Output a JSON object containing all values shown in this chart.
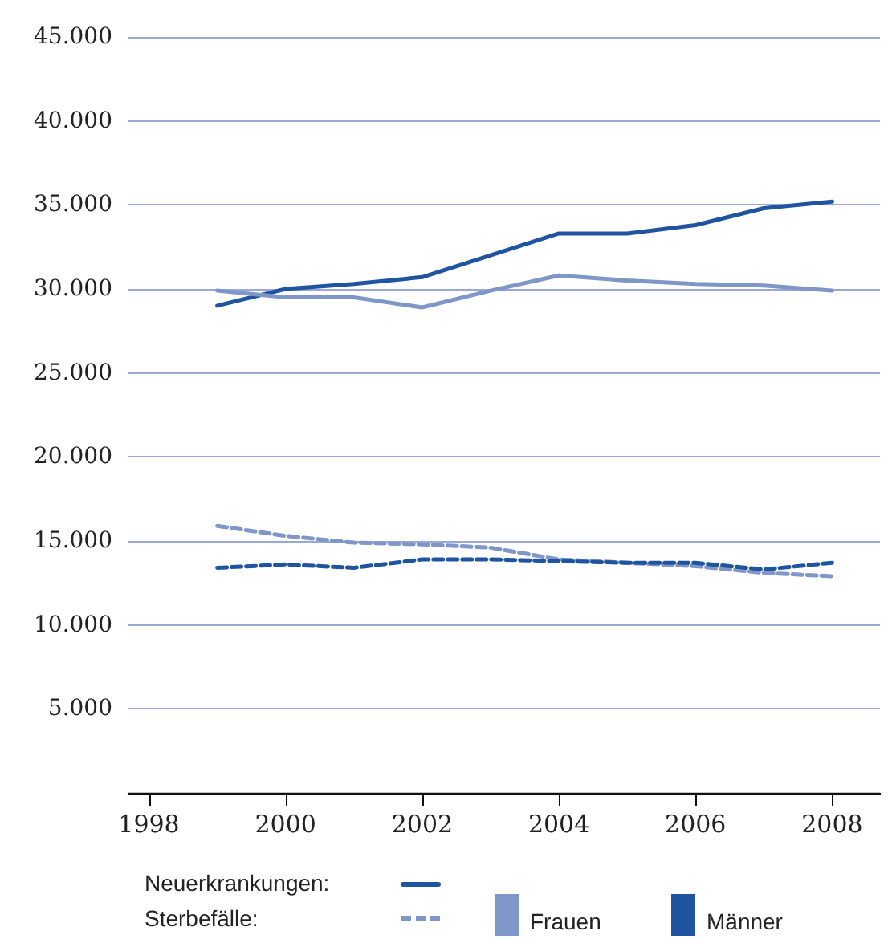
{
  "chart_data": {
    "type": "line",
    "x": [
      1999,
      2000,
      2001,
      2002,
      2003,
      2004,
      2005,
      2006,
      2007,
      2008
    ],
    "series": [
      {
        "color": "#1f55a0",
        "line_style": "solid",
        "values": [
          29000,
          30000,
          30300,
          30700,
          32000,
          33300,
          33300,
          33800,
          34800,
          35200
        ]
      },
      {
        "color": "#7f96c8",
        "line_style": "solid",
        "values": [
          29900,
          29500,
          29500,
          28900,
          29900,
          30800,
          30500,
          30300,
          30200,
          29900
        ]
      },
      {
        "color": "#7f96c8",
        "line_style": "dashed",
        "values": [
          15900,
          15300,
          14900,
          14800,
          14600,
          13900,
          13700,
          13500,
          13100,
          12900
        ]
      },
      {
        "color": "#1f55a0",
        "line_style": "dashed",
        "values": [
          13400,
          13600,
          13400,
          13900,
          13900,
          13800,
          13700,
          13700,
          13300,
          13700
        ]
      }
    ],
    "xlim": [
      1997.7,
      2008.7
    ],
    "xticks": [
      1998,
      2000,
      2002,
      2004,
      2006,
      2008
    ],
    "ylim": [
      0,
      45000
    ],
    "yticks": [
      {
        "value": 0,
        "label": null
      },
      {
        "value": 5000,
        "label": "5.000"
      },
      {
        "value": 10000,
        "label": "10.000"
      },
      {
        "value": 15000,
        "label": "15.000"
      },
      {
        "value": 20000,
        "label": "20.000"
      },
      {
        "value": 25000,
        "label": "25.000"
      },
      {
        "value": 30000,
        "label": "30.000"
      },
      {
        "value": 35000,
        "label": "35.000"
      },
      {
        "value": 40000,
        "label": "40.000"
      },
      {
        "value": 45000,
        "label": "45.000"
      }
    ],
    "grid": "y",
    "marker": "none",
    "annotations": [
      "Neuerkrankungen:",
      "Sterbefälle:",
      "Frauen",
      "Männer"
    ]
  }
}
